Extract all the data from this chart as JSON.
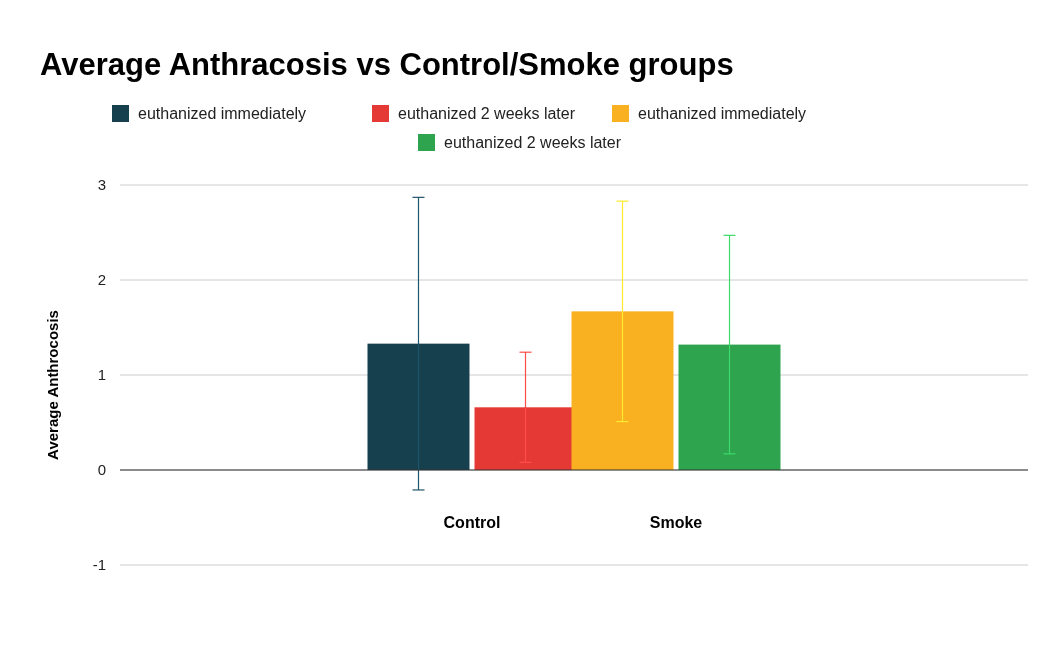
{
  "chart_data": {
    "type": "bar",
    "title": "Average Anthracosis vs Control/Smoke groups",
    "ylabel": "Average Anthrocosis",
    "categories": [
      "Control",
      "Smoke"
    ],
    "series": [
      {
        "name": "euthanized immediately",
        "color": "#17404f",
        "values": [
          1.33,
          null
        ],
        "errors": [
          1.54,
          null
        ]
      },
      {
        "name": "euthanized 2 weeks later",
        "color": "#e53935",
        "values": [
          0.66,
          null
        ],
        "errors": [
          0.58,
          null
        ]
      },
      {
        "name": "euthanized immediately",
        "color": "#f9b122",
        "values": [
          null,
          1.67
        ],
        "errors": [
          null,
          1.16
        ]
      },
      {
        "name": "euthanized 2 weeks later",
        "color": "#2ea44f",
        "values": [
          null,
          1.32
        ],
        "errors": [
          null,
          1.15
        ]
      }
    ],
    "ylim": [
      -1,
      3
    ],
    "yticks": [
      -1,
      0,
      1,
      2,
      3
    ],
    "grid": "y",
    "legend": "top"
  }
}
